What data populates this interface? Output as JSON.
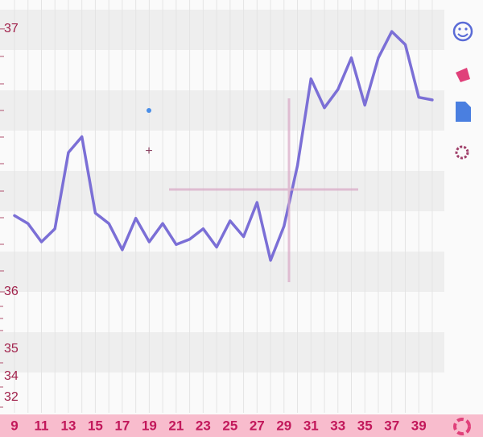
{
  "chart_data": {
    "type": "line",
    "categories": [
      "9",
      null,
      "11",
      null,
      "13",
      null,
      "15",
      null,
      "17",
      null,
      "19",
      null,
      "21",
      null,
      "23",
      null,
      "25",
      null,
      "27",
      null,
      "29",
      null,
      "31",
      null,
      "33",
      null,
      "35",
      null,
      "37",
      null,
      "39",
      null
    ],
    "values": [
      36.29,
      36.26,
      36.19,
      36.24,
      36.53,
      36.59,
      36.3,
      36.26,
      36.16,
      36.28,
      36.19,
      36.26,
      36.18,
      36.2,
      36.24,
      36.17,
      36.27,
      36.21,
      36.34,
      36.12,
      36.25,
      36.48,
      36.81,
      36.7,
      36.77,
      36.89,
      36.71,
      36.89,
      36.99,
      36.94,
      36.74,
      36.73
    ],
    "color": "#7b6fd6",
    "ylim": [
      35.54,
      37.11
    ],
    "yticks": [
      37,
      36
    ],
    "grid": true
  },
  "side_labels": [
    "35",
    "34",
    "32"
  ]
}
